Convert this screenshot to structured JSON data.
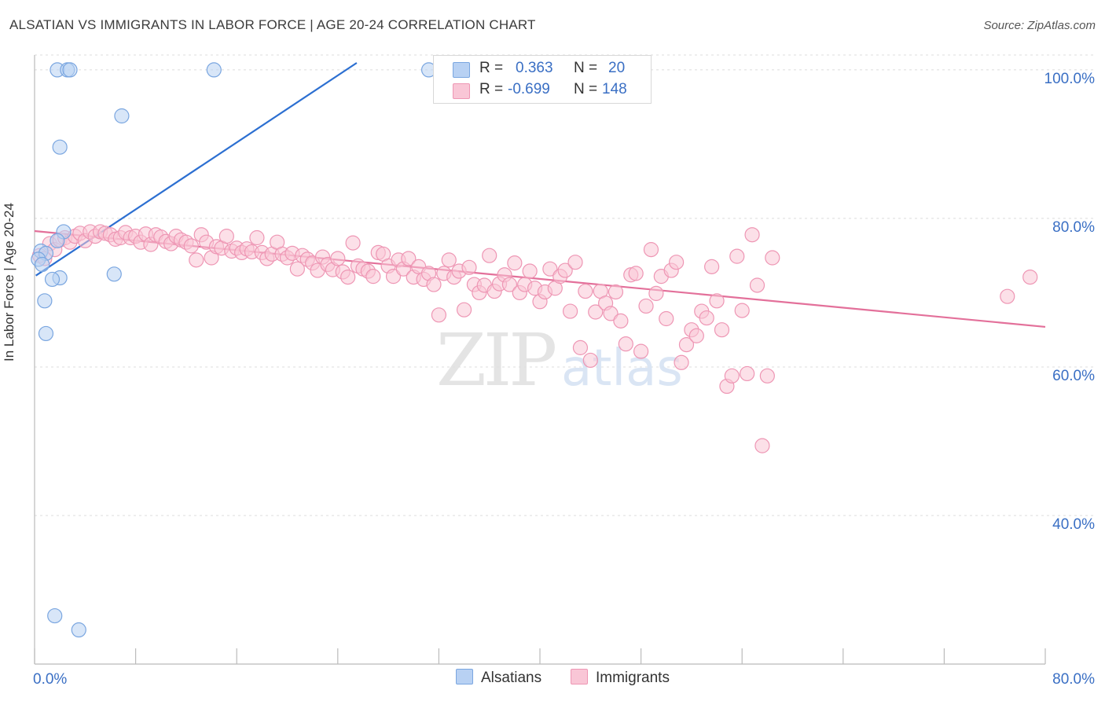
{
  "header": {
    "title": "ALSATIAN VS IMMIGRANTS IN LABOR FORCE | AGE 20-24 CORRELATION CHART",
    "source": "Source: ZipAtlas.com"
  },
  "watermark": {
    "zip": "ZIP",
    "atlas": "atlas"
  },
  "legend_stats": {
    "alsatians": {
      "r_label": "R =",
      "r_value": "0.363",
      "n_label": "N =",
      "n_value": "20"
    },
    "immigrants": {
      "r_label": "R =",
      "r_value": "-0.699",
      "n_label": "N =",
      "n_value": "148"
    }
  },
  "legend_bottom": {
    "alsatians": "Alsatians",
    "immigrants": "Immigrants"
  },
  "colors": {
    "alsatians_fill": "#b8d1f3",
    "alsatians_stroke": "#7aa6e0",
    "alsatians_line": "#2c6fd1",
    "immigrants_fill": "#f9c6d6",
    "immigrants_stroke": "#ee96b4",
    "immigrants_line": "#e3709a",
    "axis_text": "#3a6fc4",
    "grid": "#dcdcdc"
  },
  "chart_data": {
    "type": "scatter",
    "title": "ALSATIAN VS IMMIGRANTS IN LABOR FORCE | AGE 20-24 CORRELATION CHART",
    "xlabel": "",
    "ylabel": "In Labor Force | Age 20-24",
    "xlim": [
      0,
      80
    ],
    "ylim": [
      20,
      102
    ],
    "x_tick_labels": [
      {
        "value": 0,
        "label": "0.0%"
      },
      {
        "value": 80,
        "label": "80.0%"
      }
    ],
    "y_tick_labels": [
      {
        "value": 40,
        "label": "40.0%"
      },
      {
        "value": 60,
        "label": "60.0%"
      },
      {
        "value": 80,
        "label": "80.0%"
      },
      {
        "value": 100,
        "label": "100.0%"
      }
    ],
    "grid": true,
    "series": [
      {
        "name": "Alsatians",
        "r": 0.363,
        "n": 20,
        "trend": {
          "x": [
            0.1,
            25.5
          ],
          "y": [
            72.3,
            102.0
          ]
        },
        "points": [
          [
            1.8,
            100
          ],
          [
            2.6,
            100
          ],
          [
            2.8,
            100
          ],
          [
            14.2,
            100
          ],
          [
            31.2,
            100
          ],
          [
            6.9,
            93.8
          ],
          [
            2.0,
            89.6
          ],
          [
            2.3,
            78.2
          ],
          [
            0.5,
            75.6
          ],
          [
            0.9,
            75.3
          ],
          [
            0.3,
            74.5
          ],
          [
            0.6,
            73.8
          ],
          [
            2.0,
            72.0
          ],
          [
            6.3,
            72.5
          ],
          [
            1.4,
            71.8
          ],
          [
            0.8,
            68.9
          ],
          [
            0.9,
            64.5
          ],
          [
            1.6,
            26.5
          ],
          [
            3.5,
            24.6
          ],
          [
            1.8,
            77.0
          ]
        ]
      },
      {
        "name": "Immigrants",
        "r": -0.699,
        "n": 148,
        "trend": {
          "x": [
            0.0,
            80.0
          ],
          "y": [
            78.3,
            65.4
          ]
        },
        "points": [
          [
            0.4,
            75.0
          ],
          [
            0.8,
            74.6
          ],
          [
            1.2,
            76.6
          ],
          [
            1.6,
            75.8
          ],
          [
            2.0,
            77.1
          ],
          [
            2.4,
            77.4
          ],
          [
            2.8,
            76.8
          ],
          [
            3.2,
            77.6
          ],
          [
            3.6,
            78.0
          ],
          [
            4.0,
            77.0
          ],
          [
            4.4,
            78.2
          ],
          [
            4.8,
            77.6
          ],
          [
            5.2,
            78.2
          ],
          [
            5.6,
            78.0
          ],
          [
            6.0,
            77.8
          ],
          [
            6.4,
            77.2
          ],
          [
            6.8,
            77.4
          ],
          [
            7.2,
            78.1
          ],
          [
            7.6,
            77.4
          ],
          [
            8.0,
            77.6
          ],
          [
            8.4,
            76.8
          ],
          [
            8.8,
            77.9
          ],
          [
            9.2,
            76.5
          ],
          [
            9.6,
            77.8
          ],
          [
            10.0,
            77.5
          ],
          [
            10.4,
            76.9
          ],
          [
            10.8,
            76.6
          ],
          [
            11.2,
            77.6
          ],
          [
            11.6,
            77.1
          ],
          [
            12.0,
            76.8
          ],
          [
            12.4,
            76.3
          ],
          [
            12.8,
            74.4
          ],
          [
            13.2,
            77.8
          ],
          [
            13.6,
            76.8
          ],
          [
            14.0,
            74.7
          ],
          [
            14.4,
            76.2
          ],
          [
            14.8,
            76.0
          ],
          [
            15.2,
            77.6
          ],
          [
            15.6,
            75.6
          ],
          [
            16.0,
            76.0
          ],
          [
            16.4,
            75.4
          ],
          [
            16.8,
            75.9
          ],
          [
            17.2,
            75.5
          ],
          [
            17.6,
            77.4
          ],
          [
            18.0,
            75.4
          ],
          [
            18.4,
            74.6
          ],
          [
            18.8,
            75.2
          ],
          [
            19.2,
            76.8
          ],
          [
            19.6,
            75.2
          ],
          [
            20.0,
            74.7
          ],
          [
            20.4,
            75.3
          ],
          [
            20.8,
            73.2
          ],
          [
            21.2,
            75.0
          ],
          [
            21.6,
            74.5
          ],
          [
            22.0,
            74.0
          ],
          [
            22.4,
            73.0
          ],
          [
            22.8,
            74.8
          ],
          [
            23.2,
            73.8
          ],
          [
            23.6,
            73.1
          ],
          [
            24.0,
            74.6
          ],
          [
            24.4,
            72.8
          ],
          [
            24.8,
            72.1
          ],
          [
            25.2,
            76.7
          ],
          [
            25.6,
            73.6
          ],
          [
            26.0,
            73.2
          ],
          [
            26.4,
            72.9
          ],
          [
            26.8,
            72.2
          ],
          [
            27.2,
            75.4
          ],
          [
            27.6,
            75.2
          ],
          [
            28.0,
            73.6
          ],
          [
            28.4,
            72.2
          ],
          [
            28.8,
            74.4
          ],
          [
            29.2,
            73.2
          ],
          [
            29.6,
            74.6
          ],
          [
            30.0,
            72.1
          ],
          [
            30.4,
            73.5
          ],
          [
            30.8,
            71.8
          ],
          [
            31.2,
            72.6
          ],
          [
            31.6,
            71.1
          ],
          [
            32.0,
            67.0
          ],
          [
            32.4,
            72.6
          ],
          [
            32.8,
            74.4
          ],
          [
            33.2,
            72.1
          ],
          [
            33.6,
            72.9
          ],
          [
            34.0,
            67.7
          ],
          [
            34.4,
            73.4
          ],
          [
            34.8,
            71.1
          ],
          [
            35.2,
            70.0
          ],
          [
            35.6,
            71.0
          ],
          [
            36.0,
            75.0
          ],
          [
            36.4,
            70.2
          ],
          [
            36.8,
            71.2
          ],
          [
            37.2,
            72.4
          ],
          [
            37.6,
            71.1
          ],
          [
            38.0,
            74.0
          ],
          [
            38.4,
            70.0
          ],
          [
            38.8,
            71.1
          ],
          [
            39.2,
            72.9
          ],
          [
            39.6,
            70.6
          ],
          [
            40.0,
            68.8
          ],
          [
            40.4,
            70.1
          ],
          [
            40.8,
            73.2
          ],
          [
            41.2,
            70.6
          ],
          [
            41.6,
            72.2
          ],
          [
            42.0,
            73.0
          ],
          [
            42.4,
            67.5
          ],
          [
            42.8,
            74.1
          ],
          [
            43.2,
            62.6
          ],
          [
            43.6,
            70.2
          ],
          [
            44.0,
            60.9
          ],
          [
            44.4,
            67.4
          ],
          [
            44.8,
            70.2
          ],
          [
            45.2,
            68.6
          ],
          [
            45.6,
            67.2
          ],
          [
            46.0,
            70.1
          ],
          [
            46.4,
            66.2
          ],
          [
            46.8,
            63.1
          ],
          [
            47.2,
            72.4
          ],
          [
            47.6,
            72.6
          ],
          [
            48.0,
            62.1
          ],
          [
            48.4,
            68.2
          ],
          [
            48.8,
            75.8
          ],
          [
            49.2,
            69.9
          ],
          [
            49.6,
            72.2
          ],
          [
            50.0,
            66.5
          ],
          [
            50.4,
            73.0
          ],
          [
            50.8,
            74.1
          ],
          [
            51.2,
            60.6
          ],
          [
            51.6,
            63.0
          ],
          [
            52.0,
            65.0
          ],
          [
            52.4,
            64.2
          ],
          [
            52.8,
            67.5
          ],
          [
            53.2,
            66.6
          ],
          [
            53.6,
            73.5
          ],
          [
            54.0,
            68.9
          ],
          [
            54.4,
            65.0
          ],
          [
            54.8,
            57.4
          ],
          [
            55.2,
            58.8
          ],
          [
            55.6,
            74.9
          ],
          [
            56.0,
            67.6
          ],
          [
            56.4,
            59.1
          ],
          [
            56.8,
            77.8
          ],
          [
            57.2,
            71.0
          ],
          [
            57.6,
            49.4
          ],
          [
            58.0,
            58.8
          ],
          [
            58.4,
            74.7
          ],
          [
            78.8,
            72.1
          ],
          [
            77.0,
            69.5
          ]
        ]
      }
    ]
  }
}
